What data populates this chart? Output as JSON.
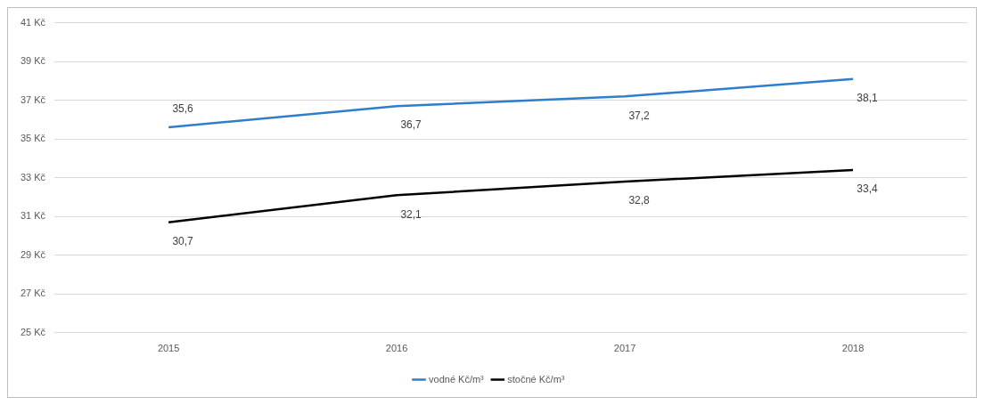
{
  "chart_data": {
    "type": "line",
    "categories": [
      "2015",
      "2016",
      "2017",
      "2018"
    ],
    "series": [
      {
        "name": "vodné Kč/m³",
        "color": "#2e7ec9",
        "values": [
          35.6,
          36.7,
          37.2,
          38.1
        ],
        "value_labels": [
          "35,6",
          "36,7",
          "37,2",
          "38,1"
        ]
      },
      {
        "name": "stočné Kč/m³",
        "color": "#000000",
        "values": [
          30.7,
          32.1,
          32.8,
          33.4
        ],
        "value_labels": [
          "30,7",
          "32,1",
          "32,8",
          "33,4"
        ]
      }
    ],
    "ylim": [
      25,
      41
    ],
    "yticks": [
      {
        "value": 25,
        "label": "25 Kč"
      },
      {
        "value": 27,
        "label": "27 Kč"
      },
      {
        "value": 29,
        "label": "29 Kč"
      },
      {
        "value": 31,
        "label": "31 Kč"
      },
      {
        "value": 33,
        "label": "33 Kč"
      },
      {
        "value": 35,
        "label": "35 Kč"
      },
      {
        "value": 37,
        "label": "37 Kč"
      },
      {
        "value": 39,
        "label": "39 Kč"
      },
      {
        "value": 41,
        "label": "41 Kč"
      }
    ],
    "grid": "y",
    "legend": "bottom",
    "marker": "none",
    "line_style": "solid"
  }
}
